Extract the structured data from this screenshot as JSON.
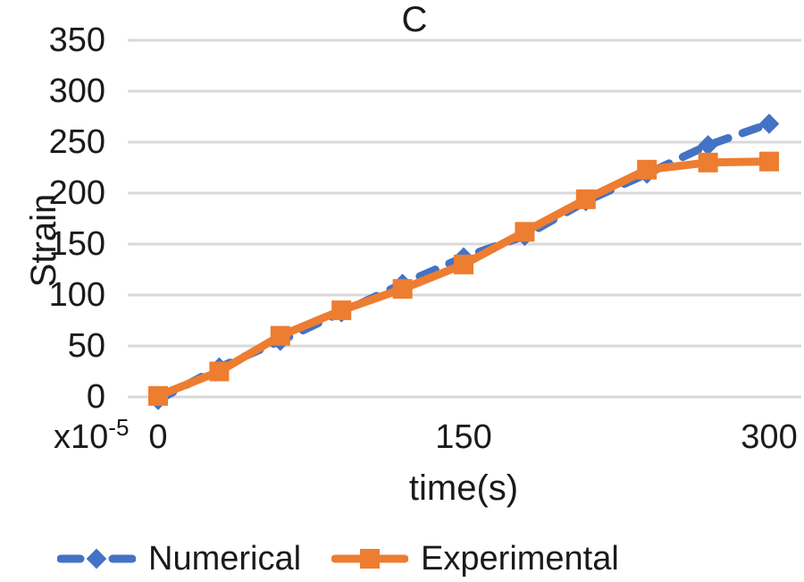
{
  "chart_data": {
    "type": "line",
    "title": "C",
    "xlabel": "time(s)",
    "ylabel": "Strain",
    "axis_multiplier": {
      "mantissa": "x10",
      "exponent": "-5"
    },
    "x": [
      0,
      30,
      60,
      90,
      120,
      150,
      180,
      210,
      240,
      270,
      300
    ],
    "series": [
      {
        "name": "Numerical",
        "color": "#4472C4",
        "line_style": "dashed",
        "marker": "diamond",
        "values": [
          -3,
          29,
          55,
          83,
          111,
          137,
          158,
          192,
          219,
          247,
          268
        ]
      },
      {
        "name": "Experimental",
        "color": "#ED7D31",
        "line_style": "solid",
        "marker": "square",
        "values": [
          1,
          25,
          60,
          85,
          106,
          130,
          162,
          194,
          223,
          230,
          231
        ]
      }
    ],
    "xlim": [
      0,
      300
    ],
    "ylim": [
      0,
      350
    ],
    "x_ticks": [
      0,
      150,
      300
    ],
    "y_ticks": [
      0,
      50,
      100,
      150,
      200,
      250,
      300,
      350
    ],
    "grid": true,
    "gridline_color": "#D9D9D9",
    "text_color": "#1a1a1a",
    "legend_position": "bottom"
  }
}
